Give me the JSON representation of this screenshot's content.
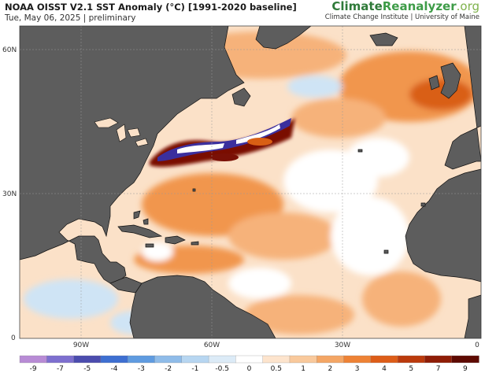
{
  "header": {
    "title": "NOAA OISST V2.1 SST Anomaly (°C) [1991-2020 baseline]",
    "subtitle": "Tue, May 06, 2025 | preliminary"
  },
  "brand": {
    "name_part1": "Climate",
    "name_part2": "Reanalyzer",
    "name_part3": ".org",
    "tagline": "Climate Change Institute | University of Maine"
  },
  "map": {
    "latitude_labels": [
      "60N",
      "30N",
      "0"
    ],
    "longitude_labels": [
      "90W",
      "60W",
      "30W",
      "0"
    ],
    "colors": {
      "land": "#5d5d5d",
      "coastline": "#111111",
      "ocean_background": "#fbe1c8",
      "warm_light": "#f7c59b",
      "warm_mid": "#f1964d",
      "warm_strong": "#d95f14",
      "warm_extreme": "#7a1006",
      "cool_light": "#cfe4f5",
      "cool_mid": "#8bbcea",
      "cool_extreme": "#3b2f9e"
    }
  },
  "colorbar": {
    "labels": [
      "-9",
      "-7",
      "-5",
      "-4",
      "-3",
      "-2",
      "-1",
      "-0.5",
      "0",
      "0.5",
      "1",
      "2",
      "3",
      "4",
      "5",
      "7",
      "9"
    ],
    "colors": [
      "#b88bd5",
      "#7d6fcf",
      "#4b4cae",
      "#3e6fd1",
      "#5f9be0",
      "#8fbce9",
      "#b7d6f1",
      "#dcebf7",
      "#ffffff",
      "#fde4cd",
      "#f9c99c",
      "#f4a665",
      "#ee8235",
      "#dd5d18",
      "#bb3a0c",
      "#8f1d06",
      "#5e0a02"
    ]
  }
}
